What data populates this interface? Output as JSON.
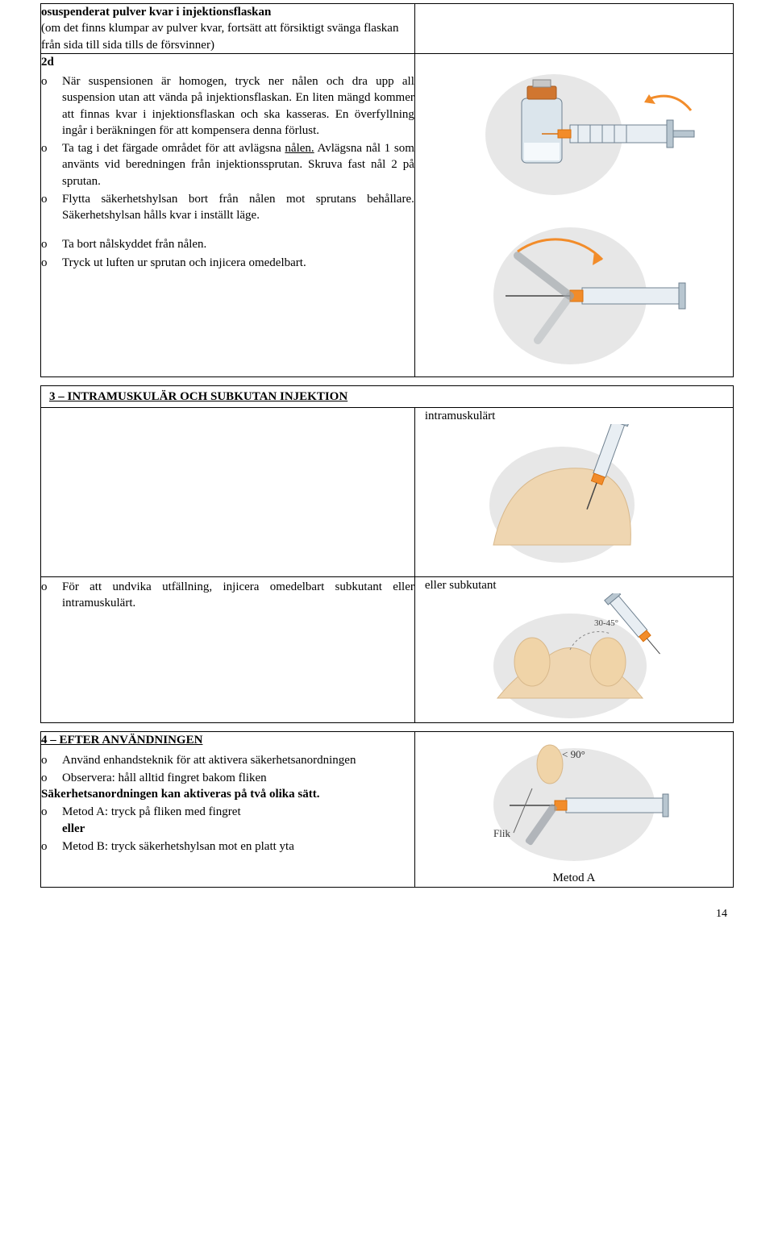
{
  "cell1": {
    "bold_line": "osuspenderat pulver kvar i injektionsflaskan",
    "paren": "(om det finns klumpar av pulver kvar, fortsätt att försiktigt svänga flaskan från sida till sida tills de försvinner)"
  },
  "cell2": {
    "head": "2d",
    "li1_a": "När suspensionen är homogen, tryck ner nålen och dra upp all suspension utan att vända på injektionsflaskan.",
    "li1_b": "En liten mängd kommer att finnas kvar i injektionsflaskan och ska kasseras.",
    "li1_c": "En överfyllning ingår i beräkningen för att kompensera denna förlust.",
    "li2_a": "Ta tag i det färgade området för att avlägsna nålen.",
    "li2_b": "Avlägsna nål 1 som använts vid beredningen från injektionssprutan. Skruva fast nål 2 på sprutan.",
    "li3_a": "Flytta säkerhetshylsan bort från nålen mot sprutans behållare.",
    "li3_b": "Säkerhetshylsan hålls kvar i inställt läge.",
    "li4": "Ta bort nålskyddet från nålen.",
    "li5": "Tryck ut luften ur sprutan och injicera omedelbart."
  },
  "section3": {
    "title": "3 – INTRAMUSKULÄR OCH SUBKUTAN INJEKTION",
    "caption_top": "intramuskulärt",
    "li1": "För att undvika utfällning, injicera omedelbart subkutant eller intramuskulärt.",
    "caption_bottom": "eller subkutant",
    "angle_label": "30-45°"
  },
  "section4": {
    "title": "4 – EFTER ANVÄNDNINGEN",
    "li1": "Använd enhandsteknik för att aktivera säkerhetsanordningen",
    "li2": "Observera: håll alltid fingret bakom fliken",
    "bold_line": "Säkerhetsanordningen kan aktiveras på två olika sätt.",
    "li3": "Metod A: tryck på fliken med fingret",
    "eller": "eller",
    "li4": "Metod B: tryck säkerhetshylsan mot en platt yta",
    "img_label_angle": "< 90°",
    "img_label_flik": "Flik",
    "caption": "Metod A"
  },
  "page_num": "14",
  "colors": {
    "skin": "#efd6b1",
    "skin_shadow": "#d8b88b",
    "orange": "#f28c2a",
    "orange_dark": "#d96f0b",
    "syringe_body": "#e8eef3",
    "syringe_line": "#6f8190",
    "vial_cap": "#d07630",
    "vial_glass": "#dbe5ec",
    "gray_bg": "#e7e7e7",
    "gray_line": "#9aa0a6",
    "finger": "#f0d4a8"
  }
}
